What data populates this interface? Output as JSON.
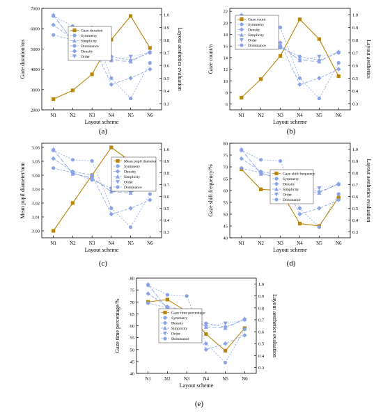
{
  "figure": {
    "x_categories": [
      "N1",
      "N2",
      "N3",
      "N4",
      "N5",
      "N6"
    ],
    "right_axis_ticks": [
      "0.3",
      "0.4",
      "0.5",
      "0.6",
      "0.7",
      "0.8",
      "0.9",
      "1.0"
    ],
    "colors": {
      "gaze": "#b8860b",
      "aesthetic": "#8aa2e6"
    }
  },
  "chart_data": [
    {
      "type": "line",
      "panel_label": "(a)",
      "xlabel": "Layout scheme",
      "ylabel": "Gaze duration/ms",
      "ylabel_right": "Layout aesthetics evaluation",
      "y_ticks": [
        "2000",
        "3000",
        "4000",
        "5000",
        "6000",
        "7000"
      ],
      "ylim": [
        2000,
        7000
      ],
      "y2lim": [
        0.25,
        1.05
      ],
      "categories": [
        "N1",
        "N2",
        "N3",
        "N4",
        "N5",
        "N6"
      ],
      "legend_position": "top-left",
      "series": [
        {
          "name": "Gaze duration",
          "axis": "left",
          "marker": "square",
          "values": [
            2530,
            2960,
            3750,
            5460,
            6620,
            5050
          ]
        },
        {
          "name": "Symmetry",
          "axis": "right",
          "marker": "circle",
          "values": [
            0.99,
            0.91,
            0.9,
            0.5,
            0.34,
            0.62
          ]
        },
        {
          "name": "Simplicity",
          "axis": "right",
          "marker": "triangle-up",
          "values": [
            1.0,
            0.79,
            0.76,
            0.64,
            0.63,
            0.71
          ]
        },
        {
          "name": "Dominance",
          "axis": "right",
          "marker": "circle",
          "values": [
            0.84,
            0.8,
            0.74,
            0.67,
            0.64,
            0.7
          ]
        },
        {
          "name": "Density",
          "axis": "right",
          "marker": "diamond",
          "values": [
            0.92,
            0.81,
            0.78,
            0.45,
            0.5,
            0.57
          ]
        },
        {
          "name": "Order",
          "axis": "right",
          "marker": "triangle-down",
          "values": [
            0.99,
            0.8,
            0.75,
            0.64,
            0.67,
            0.7
          ]
        }
      ]
    },
    {
      "type": "line",
      "panel_label": "(b)",
      "xlabel": "Layout scheme",
      "ylabel": "Gaze count/n",
      "ylabel_right": "Layout aesthetics",
      "y_ticks": [
        "6",
        "8",
        "10",
        "12",
        "14",
        "16",
        "18",
        "20",
        "22"
      ],
      "ylim": [
        5,
        22.5
      ],
      "y2lim": [
        0.25,
        1.05
      ],
      "categories": [
        "N1",
        "N2",
        "N3",
        "N4",
        "N5",
        "N6"
      ],
      "legend_position": "top-left",
      "series": [
        {
          "name": "Gaze count",
          "axis": "left",
          "marker": "square",
          "values": [
            7.1,
            10.3,
            14.3,
            20.6,
            17.2,
            10.8
          ]
        },
        {
          "name": "Symmetry",
          "axis": "right",
          "marker": "circle",
          "values": [
            0.99,
            0.91,
            0.9,
            0.5,
            0.34,
            0.62
          ]
        },
        {
          "name": "Density",
          "axis": "right",
          "marker": "diamond",
          "values": [
            0.92,
            0.81,
            0.78,
            0.45,
            0.5,
            0.57
          ]
        },
        {
          "name": "Simplicity",
          "axis": "right",
          "marker": "triangle-up",
          "values": [
            1.0,
            0.79,
            0.76,
            0.64,
            0.63,
            0.71
          ]
        },
        {
          "name": "Order",
          "axis": "right",
          "marker": "triangle-down",
          "values": [
            0.99,
            0.8,
            0.75,
            0.64,
            0.67,
            0.7
          ]
        },
        {
          "name": "Dominance",
          "axis": "right",
          "marker": "circle",
          "values": [
            0.84,
            0.8,
            0.74,
            0.67,
            0.64,
            0.7
          ]
        }
      ]
    },
    {
      "type": "line",
      "panel_label": "(c)",
      "xlabel": "Layout scheme",
      "ylabel": "Mean pupil diameter/mm",
      "ylabel_right": "",
      "y_ticks": [
        "3.00",
        "3.01",
        "3.02",
        "3.03",
        "3.04",
        "3.05",
        "3.06"
      ],
      "ylim": [
        2.995,
        3.063
      ],
      "y2lim": [
        0.25,
        1.05
      ],
      "categories": [
        "N1",
        "N2",
        "N3",
        "N4",
        "N5",
        "N6"
      ],
      "legend_position": "center",
      "series": [
        {
          "name": "Mean pupil diameter",
          "axis": "left",
          "marker": "square",
          "values": [
            3.0,
            3.02,
            3.04,
            3.06,
            3.05,
            3.04
          ]
        },
        {
          "name": "Symmetry",
          "axis": "right",
          "marker": "circle",
          "values": [
            0.99,
            0.91,
            0.9,
            0.5,
            0.34,
            0.62
          ]
        },
        {
          "name": "Density",
          "axis": "right",
          "marker": "diamond",
          "values": [
            0.92,
            0.81,
            0.78,
            0.45,
            0.5,
            0.57
          ]
        },
        {
          "name": "Simplicity",
          "axis": "right",
          "marker": "triangle-up",
          "values": [
            1.0,
            0.79,
            0.76,
            0.64,
            0.63,
            0.71
          ]
        },
        {
          "name": "Order",
          "axis": "right",
          "marker": "triangle-down",
          "values": [
            0.99,
            0.8,
            0.75,
            0.64,
            0.67,
            0.7
          ]
        },
        {
          "name": "Dominance",
          "axis": "right",
          "marker": "circle",
          "values": [
            0.84,
            0.8,
            0.74,
            0.67,
            0.64,
            0.7
          ]
        }
      ]
    },
    {
      "type": "line",
      "panel_label": "(d)",
      "xlabel": "Layout scheme",
      "ylabel": "Gaze shift frequency/%",
      "ylabel_right": "Layout aesthetics evaluation",
      "y_ticks": [
        "40",
        "45",
        "50",
        "55",
        "60",
        "65",
        "70",
        "75",
        "80"
      ],
      "ylim": [
        40,
        80
      ],
      "y2lim": [
        0.25,
        1.05
      ],
      "categories": [
        "N1",
        "N2",
        "N3",
        "N4",
        "N5",
        "N6"
      ],
      "legend_position": "center",
      "series": [
        {
          "name": "Gaze shift frequency",
          "axis": "left",
          "marker": "square",
          "values": [
            69,
            60.5,
            60,
            46,
            45,
            57
          ]
        },
        {
          "name": "Symmetry",
          "axis": "right",
          "marker": "circle",
          "values": [
            0.99,
            0.91,
            0.9,
            0.5,
            0.34,
            0.62
          ]
        },
        {
          "name": "Density",
          "axis": "right",
          "marker": "diamond",
          "values": [
            0.92,
            0.81,
            0.78,
            0.45,
            0.5,
            0.57
          ]
        },
        {
          "name": "Simplicity",
          "axis": "right",
          "marker": "triangle-up",
          "values": [
            1.0,
            0.79,
            0.76,
            0.64,
            0.63,
            0.71
          ]
        },
        {
          "name": "Order",
          "axis": "right",
          "marker": "triangle-down",
          "values": [
            0.99,
            0.8,
            0.75,
            0.64,
            0.67,
            0.7
          ]
        },
        {
          "name": "Dominance",
          "axis": "right",
          "marker": "circle",
          "values": [
            0.84,
            0.8,
            0.74,
            0.67,
            0.64,
            0.7
          ]
        }
      ]
    },
    {
      "type": "line",
      "panel_label": "(e)",
      "xlabel": "Layout scheme",
      "ylabel": "Gaze time percentage/%",
      "ylabel_right": "Layout aesthetics evaluation",
      "y_ticks": [
        "40",
        "45",
        "50",
        "55",
        "60",
        "65",
        "70",
        "75",
        "80"
      ],
      "ylim": [
        40,
        80
      ],
      "y2lim": [
        0.25,
        1.05
      ],
      "categories": [
        "N1",
        "N2",
        "N3",
        "N4",
        "N5",
        "N6"
      ],
      "legend_position": "center",
      "series": [
        {
          "name": "Gaze time percentage",
          "axis": "left",
          "marker": "square",
          "values": [
            70,
            71,
            66,
            56.5,
            49.5,
            59
          ]
        },
        {
          "name": "Symmetry",
          "axis": "right",
          "marker": "circle",
          "values": [
            0.99,
            0.91,
            0.9,
            0.5,
            0.34,
            0.62
          ]
        },
        {
          "name": "Density",
          "axis": "right",
          "marker": "diamond",
          "values": [
            0.92,
            0.81,
            0.78,
            0.45,
            0.5,
            0.57
          ]
        },
        {
          "name": "Simplicity",
          "axis": "right",
          "marker": "triangle-up",
          "values": [
            1.0,
            0.79,
            0.76,
            0.64,
            0.63,
            0.71
          ]
        },
        {
          "name": "Order",
          "axis": "right",
          "marker": "triangle-down",
          "values": [
            0.99,
            0.8,
            0.75,
            0.64,
            0.67,
            0.7
          ]
        },
        {
          "name": "Dominance",
          "axis": "right",
          "marker": "circle",
          "values": [
            0.84,
            0.8,
            0.74,
            0.67,
            0.64,
            0.7
          ]
        }
      ]
    }
  ]
}
